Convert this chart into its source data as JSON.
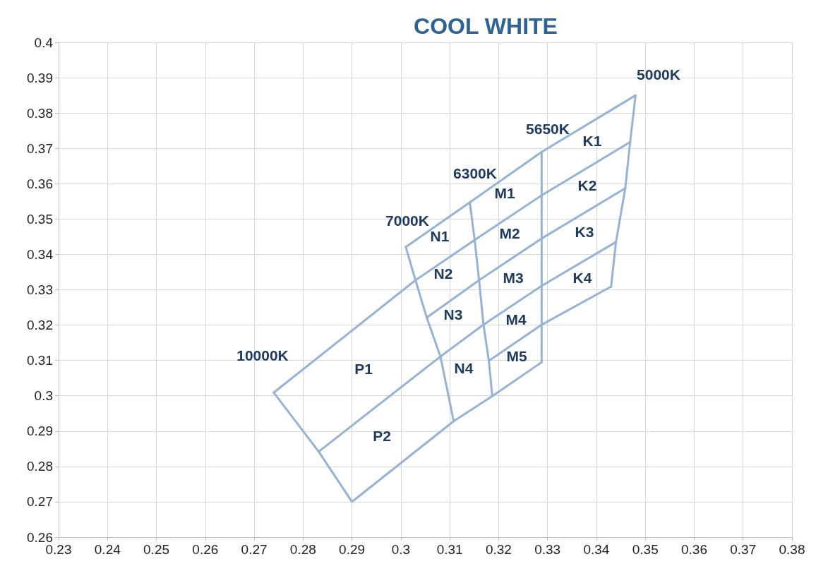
{
  "chart_data": {
    "type": "line",
    "title": "COOL WHITE",
    "marker": "none",
    "line_style": "solid",
    "grid": true,
    "xlim": [
      0.23,
      0.38
    ],
    "xticks": [
      0.23,
      0.24,
      0.25,
      0.26,
      0.27,
      0.28,
      0.29,
      0.3,
      0.31,
      0.32,
      0.33,
      0.34,
      0.35,
      0.36,
      0.37,
      0.38
    ],
    "ylim": [
      0.26,
      0.4
    ],
    "yticks": [
      0.26,
      0.27,
      0.28,
      0.29,
      0.3,
      0.31,
      0.32,
      0.33,
      0.34,
      0.35,
      0.36,
      0.37,
      0.38,
      0.39,
      0.4
    ],
    "series": [
      {
        "color": "#95b3d7",
        "x": [
          0.301,
          0.3141,
          0.3288,
          0.348
        ],
        "values": [
          0.3421,
          0.3547,
          0.369,
          0.385
        ]
      },
      {
        "color": "#95b3d7",
        "x": [
          0.274,
          0.303,
          0.3151,
          0.3288,
          0.3469
        ],
        "values": [
          0.3009,
          0.3327,
          0.3441,
          0.3567,
          0.3718
        ]
      },
      {
        "color": "#95b3d7",
        "x": [
          0.3053,
          0.316,
          0.3288,
          0.3459
        ],
        "values": [
          0.3221,
          0.3327,
          0.3445,
          0.3587
        ]
      },
      {
        "color": "#95b3d7",
        "x": [
          0.2832,
          0.3081,
          0.3169,
          0.3288,
          0.344
        ],
        "values": [
          0.2842,
          0.3111,
          0.3201,
          0.3311,
          0.3435
        ]
      },
      {
        "color": "#95b3d7",
        "x": [
          0.318,
          0.3288,
          0.343
        ],
        "values": [
          0.3099,
          0.3201,
          0.3309
        ]
      },
      {
        "color": "#95b3d7",
        "x": [
          0.29,
          0.3108,
          0.3187,
          0.3288
        ],
        "values": [
          0.27,
          0.2928,
          0.2999,
          0.3095
        ]
      },
      {
        "color": "#95b3d7",
        "x": [
          0.274,
          0.2832,
          0.29
        ],
        "values": [
          0.3009,
          0.2842,
          0.27
        ]
      },
      {
        "color": "#95b3d7",
        "x": [
          0.301,
          0.303,
          0.3053,
          0.3081,
          0.3108
        ],
        "values": [
          0.3421,
          0.3327,
          0.3221,
          0.3111,
          0.2928
        ]
      },
      {
        "color": "#95b3d7",
        "x": [
          0.3141,
          0.3151,
          0.316,
          0.3169,
          0.318,
          0.3187
        ],
        "values": [
          0.3547,
          0.3441,
          0.3327,
          0.3201,
          0.3099,
          0.2999
        ]
      },
      {
        "color": "#95b3d7",
        "x": [
          0.3288,
          0.3288
        ],
        "values": [
          0.369,
          0.3095
        ]
      },
      {
        "color": "#95b3d7",
        "x": [
          0.348,
          0.3469,
          0.3459,
          0.344,
          0.343
        ],
        "values": [
          0.385,
          0.3718,
          0.3587,
          0.3435,
          0.3309
        ]
      }
    ],
    "annotations": [
      "5000K",
      "5650K",
      "6300K",
      "7000K",
      "10000K",
      "K1",
      "K2",
      "K3",
      "K4",
      "M1",
      "M2",
      "M3",
      "M4",
      "M5",
      "N1",
      "N2",
      "N3",
      "N4",
      "P1",
      "P2"
    ]
  }
}
